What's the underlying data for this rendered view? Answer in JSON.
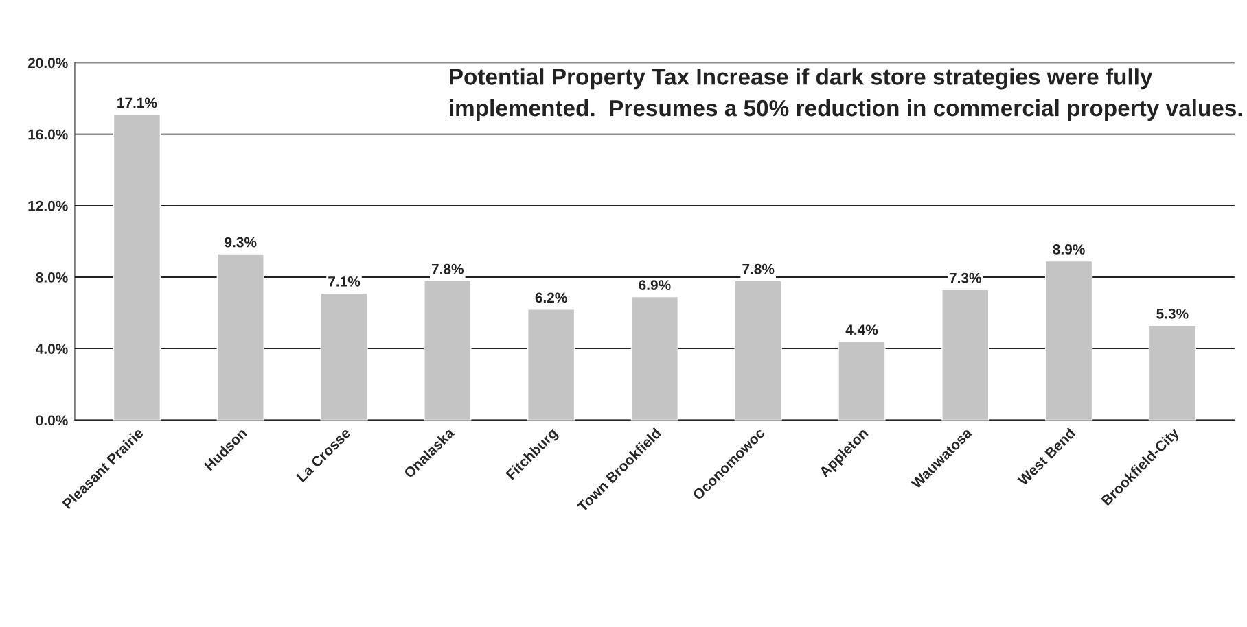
{
  "chart_data": {
    "type": "bar",
    "title": "Potential Property Tax Increase if dark store strategies were fully implemented.  Presumes a 50% reduction in commercial property values.",
    "categories": [
      "Pleasant Prairie",
      "Hudson",
      "La Crosse",
      "Onalaska",
      "Fitchburg",
      "Town Brookfield",
      "Oconomowoc",
      "Appleton",
      "Wauwatosa",
      "West Bend",
      "Brookfield-City"
    ],
    "values": [
      17.1,
      9.3,
      7.1,
      7.8,
      6.2,
      6.9,
      7.8,
      4.4,
      7.3,
      8.9,
      5.3
    ],
    "value_labels": [
      "17.1%",
      "9.3%",
      "7.1%",
      "7.8%",
      "6.2%",
      "6.9%",
      "7.8%",
      "4.4%",
      "7.3%",
      "8.9%",
      "5.3%"
    ],
    "color": "#c4c4c4",
    "ylim": [
      0,
      20
    ],
    "yticks": [
      {
        "value": 0,
        "label": "0.0%"
      },
      {
        "value": 4,
        "label": "4.0%"
      },
      {
        "value": 8,
        "label": "8.0%"
      },
      {
        "value": 12,
        "label": "12.0%"
      },
      {
        "value": 16,
        "label": "16.0%"
      },
      {
        "value": 20,
        "label": "20.0%"
      }
    ],
    "grid": "y"
  }
}
